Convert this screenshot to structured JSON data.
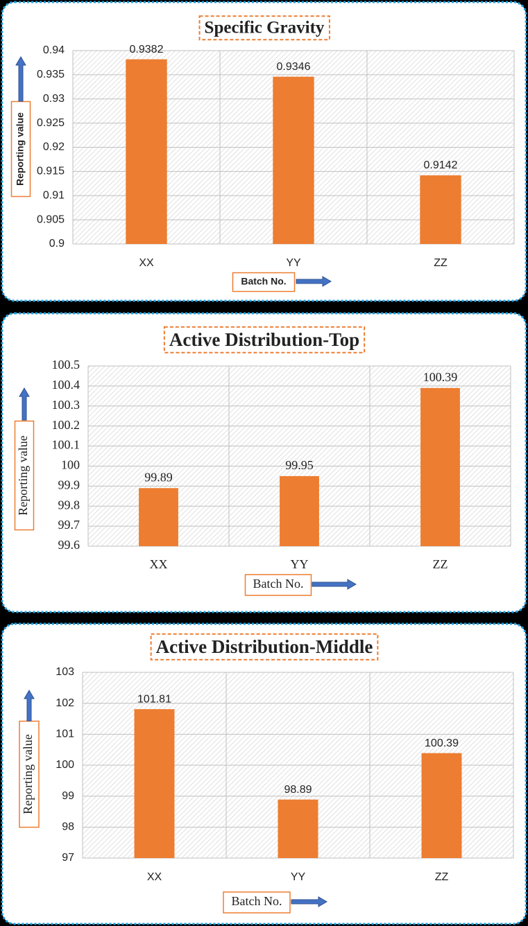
{
  "chart_data": [
    {
      "type": "bar",
      "title": "Specific Gravity",
      "x_label": "Batch No.",
      "y_label": "Reporting value",
      "categories": [
        "XX",
        "YY",
        "ZZ"
      ],
      "values": [
        0.9382,
        0.9346,
        0.9142
      ],
      "color": "#ed7d31",
      "ylim": [
        0.9,
        0.94
      ],
      "yticks": [
        0.9,
        0.905,
        0.91,
        0.915,
        0.92,
        0.925,
        0.93,
        0.935,
        0.94
      ],
      "grid": true
    },
    {
      "type": "bar",
      "title": "Active Distribution-Top",
      "x_label": "Batch No.",
      "y_label": "Reporting value",
      "categories": [
        "XX",
        "YY",
        "ZZ"
      ],
      "values": [
        99.89,
        99.95,
        100.39
      ],
      "color": "#ed7d31",
      "ylim": [
        99.6,
        100.5
      ],
      "yticks": [
        99.6,
        99.7,
        99.8,
        99.9,
        100,
        100.1,
        100.2,
        100.3,
        100.4,
        100.5
      ],
      "grid": true
    },
    {
      "type": "bar",
      "title": "Active Distribution-Middle",
      "x_label": "Batch No.",
      "y_label": "Reporting value",
      "categories": [
        "XX",
        "YY",
        "ZZ"
      ],
      "values": [
        101.81,
        98.89,
        100.39
      ],
      "color": "#ed7d31",
      "ylim": [
        97,
        103
      ],
      "yticks": [
        97,
        98,
        99,
        100,
        101,
        102,
        103
      ],
      "grid": true
    }
  ]
}
